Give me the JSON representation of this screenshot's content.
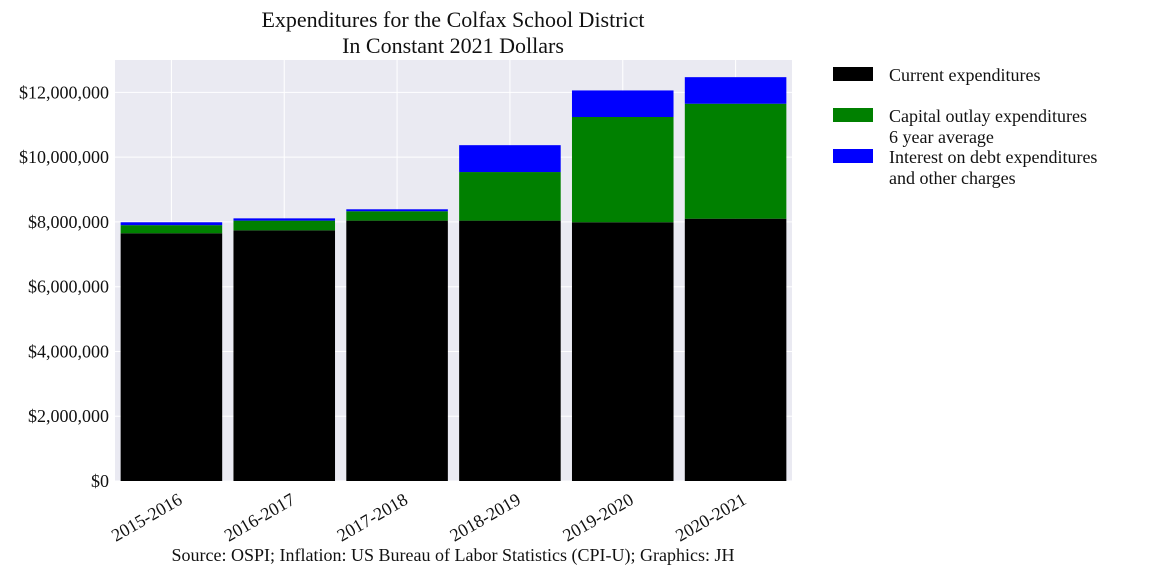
{
  "chart_data": {
    "type": "bar",
    "stacked": true,
    "title_line1": "Expenditures for the Colfax School District",
    "title_line2": "In Constant 2021 Dollars",
    "source": "Source: OSPI; Inflation: US Bureau of Labor Statistics (CPI-U); Graphics: JH",
    "categories": [
      "2015-2016",
      "2016-2017",
      "2017-2018",
      "2018-2019",
      "2019-2020",
      "2020-2021"
    ],
    "ylim": [
      0,
      13000000
    ],
    "yticks": [
      0,
      2000000,
      4000000,
      6000000,
      8000000,
      10000000,
      12000000
    ],
    "ytick_labels": [
      "$0",
      "$2,000,000",
      "$4,000,000",
      "$6,000,000",
      "$8,000,000",
      "$10,000,000",
      "$12,000,000"
    ],
    "grid": true,
    "legend_position": "right",
    "series": [
      {
        "name": "Current expenditures",
        "color": "#000000",
        "values": [
          7650000,
          7740000,
          8040000,
          8040000,
          7990000,
          8100000
        ]
      },
      {
        "name": "Capital outlay expenditures",
        "name_line2": "6 year average",
        "color": "#008000",
        "values": [
          250000,
          300000,
          290000,
          1500000,
          3250000,
          3550000
        ]
      },
      {
        "name": "Interest on debt expenditures",
        "name_line2": "and other charges",
        "color": "#0000ff",
        "values": [
          90000,
          70000,
          60000,
          830000,
          820000,
          820000
        ]
      }
    ]
  }
}
